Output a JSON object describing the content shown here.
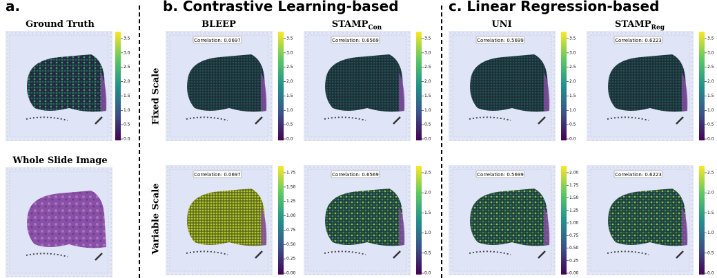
{
  "sections": [
    {
      "label": "a."
    },
    {
      "label": "b. Contrastive Learning-based"
    },
    {
      "label": "c. Linear Regression-based"
    }
  ],
  "row_labels": [
    "Fixed Scale",
    "Variable Scale"
  ],
  "panels": [
    {
      "title": "Ground Truth",
      "colorbar_ticks": [
        "0.0",
        "0.5",
        "1.0",
        "1.5",
        "2.0",
        "2.5",
        "3.0",
        "3.5"
      ]
    },
    {
      "title": "Whole Slide Image"
    },
    {
      "title": "BLEEP",
      "fixed": {
        "correlation": "Correlation: 0.0697",
        "colorbar_ticks": [
          "0.0",
          "0.5",
          "1.0",
          "1.5",
          "2.0",
          "2.5",
          "3.0",
          "3.5"
        ]
      },
      "variable": {
        "correlation": "Correlation: 0.0697",
        "colorbar_ticks": [
          "0.00",
          "0.25",
          "0.50",
          "0.75",
          "1.00",
          "1.25",
          "1.50",
          "1.75"
        ]
      }
    },
    {
      "title": {
        "main": "STAMP",
        "sub": "Con"
      },
      "fixed": {
        "correlation": "Correlation: 0.6569",
        "colorbar_ticks": [
          "0.0",
          "0.5",
          "1.0",
          "1.5",
          "2.0",
          "2.5",
          "3.0",
          "3.5"
        ]
      },
      "variable": {
        "correlation": "Correlation: 0.6569",
        "colorbar_ticks": [
          "0.0",
          "0.5",
          "1.0",
          "1.5",
          "2.0",
          "2.5"
        ]
      }
    },
    {
      "title": "UNI",
      "fixed": {
        "correlation": "Correlation: 0.5699",
        "colorbar_ticks": [
          "0.0",
          "0.5",
          "1.0",
          "1.5",
          "2.0",
          "2.5",
          "3.0",
          "3.5"
        ]
      },
      "variable": {
        "correlation": "Correlation: 0.5699",
        "colorbar_ticks": [
          "0.00",
          "0.25",
          "0.50",
          "0.75",
          "1.00",
          "1.25",
          "1.50",
          "1.75",
          "2.00"
        ]
      }
    },
    {
      "title": {
        "main": "STAMP",
        "sub": "Reg"
      },
      "fixed": {
        "correlation": "Correlation: 0.6223",
        "colorbar_ticks": [
          "0.0",
          "0.5",
          "1.0",
          "1.5",
          "2.0",
          "2.5",
          "3.0",
          "3.5"
        ]
      },
      "variable": {
        "correlation": "Correlation: 0.6223",
        "colorbar_ticks": [
          "0.0",
          "0.5",
          "1.0",
          "1.5",
          "2.0",
          "2.5"
        ]
      }
    }
  ]
}
